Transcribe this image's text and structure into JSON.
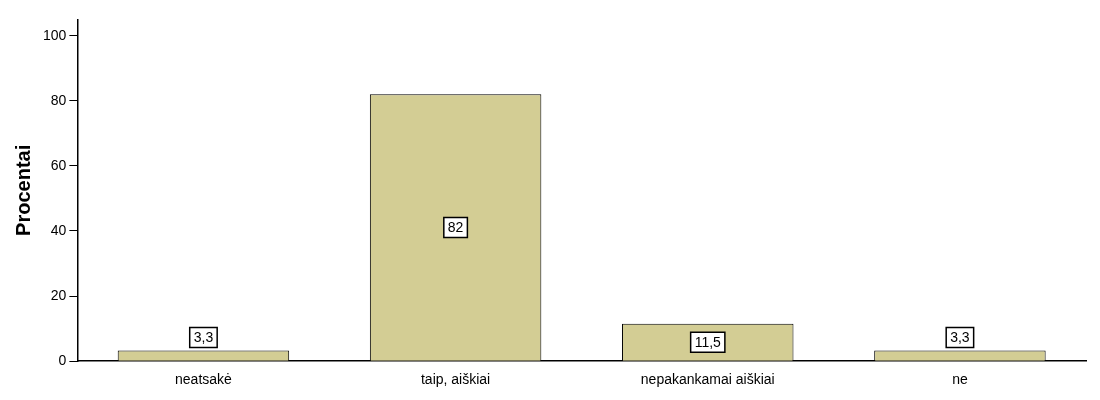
{
  "chart_data": {
    "type": "bar",
    "ylabel": "Procentai",
    "categories": [
      "neatsakė",
      "taip, aiškiai",
      "nepakankamai aiškiai",
      "ne"
    ],
    "values": [
      3.3,
      82,
      11.5,
      3.3
    ],
    "value_labels": [
      "3,3",
      "82",
      "11,5",
      "3,3"
    ],
    "color": "#d3cd94",
    "ylim": [
      0,
      105
    ],
    "yticks": [
      0,
      20,
      40,
      60,
      80,
      100
    ],
    "grid": false,
    "legend": false
  }
}
